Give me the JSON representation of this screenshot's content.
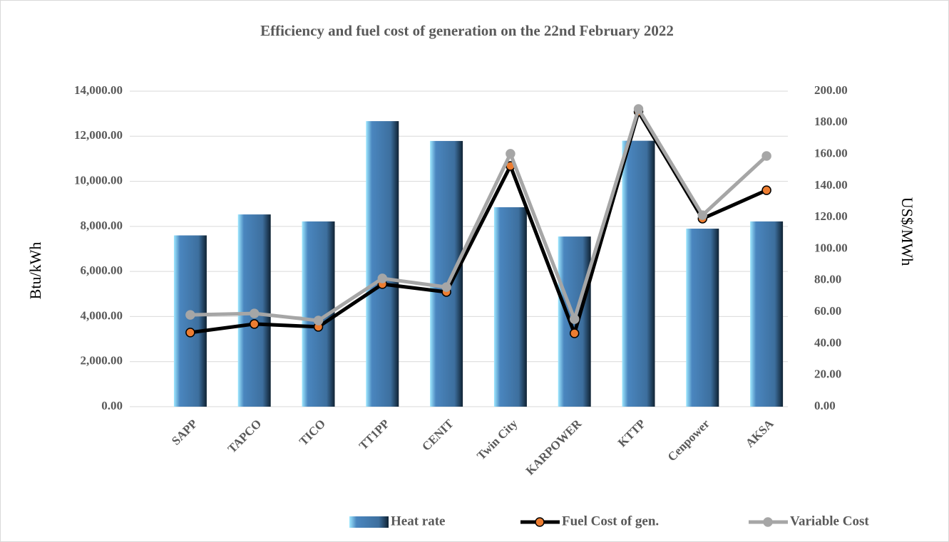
{
  "chart_data": {
    "type": "bar-line",
    "title": "Efficiency and fuel cost of generation on the 22nd February 2022",
    "y_label": "Btu/kWh",
    "y2_label": "US$/MWh",
    "categories": [
      "SAPP",
      "TAPCO",
      "TICO",
      "TT1PP",
      "CENIT",
      "Twin City",
      "KARPOWER",
      "KTTP",
      "Cenpower",
      "AKSA"
    ],
    "series": [
      {
        "name": "Heat rate",
        "type": "bar",
        "color": "#4a86bf",
        "axis": "y",
        "values": [
          7600,
          8530,
          8220,
          12670,
          11790,
          8850,
          7550,
          11800,
          7900,
          8220
        ]
      },
      {
        "name": "Fuel Cost of gen.",
        "type": "line",
        "color": "#000000",
        "marker_color": "#ed7d31",
        "axis": "y2",
        "values": [
          47,
          52.4,
          50.6,
          77.7,
          72.7,
          152.6,
          46.5,
          187,
          119.2,
          137.2
        ]
      },
      {
        "name": "Variable Cost",
        "type": "line",
        "color": "#a6a6a6",
        "marker_color": "#a6a6a6",
        "axis": "y2",
        "values": [
          58.2,
          59.1,
          54.6,
          81.3,
          75.8,
          160.3,
          55.5,
          188.7,
          121.4,
          158.9
        ]
      }
    ],
    "ylim": [
      0,
      14000
    ],
    "yticks": [
      {
        "value": 0,
        "label": "0.00"
      },
      {
        "value": 2000,
        "label": "2,000.00"
      },
      {
        "value": 4000,
        "label": "4,000.00"
      },
      {
        "value": 6000,
        "label": "6,000.00"
      },
      {
        "value": 8000,
        "label": "8,000.00"
      },
      {
        "value": 10000,
        "label": "10,000.00"
      },
      {
        "value": 12000,
        "label": "12,000.00"
      },
      {
        "value": 14000,
        "label": "14,000.00"
      }
    ],
    "y2lim": [
      0,
      200
    ],
    "y2ticks": [
      {
        "value": 0,
        "label": "0.00"
      },
      {
        "value": 20,
        "label": "20.00"
      },
      {
        "value": 40,
        "label": "40.00"
      },
      {
        "value": 60,
        "label": "60.00"
      },
      {
        "value": 80,
        "label": "80.00"
      },
      {
        "value": 100,
        "label": "100.00"
      },
      {
        "value": 120,
        "label": "120.00"
      },
      {
        "value": 140,
        "label": "140.00"
      },
      {
        "value": 160,
        "label": "160.00"
      },
      {
        "value": 180,
        "label": "180.00"
      },
      {
        "value": 200,
        "label": "200.00"
      }
    ],
    "grid": true,
    "legend": "bottom"
  }
}
